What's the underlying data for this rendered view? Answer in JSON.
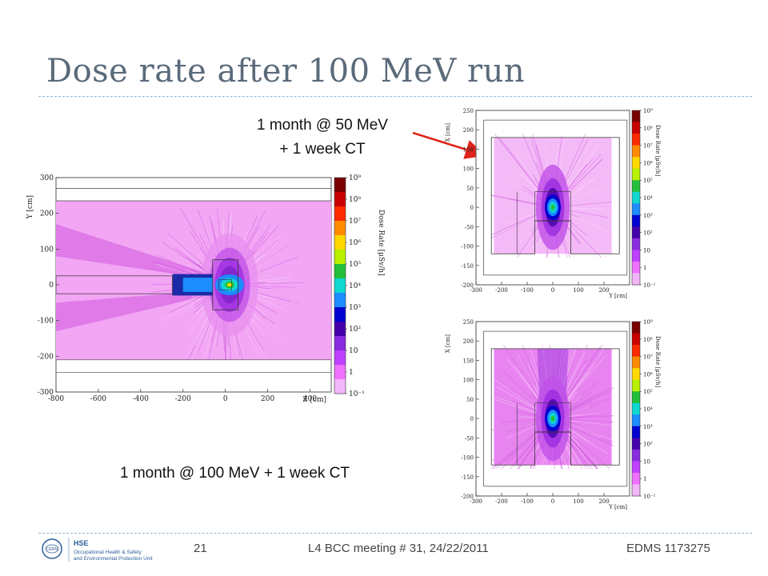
{
  "slide": {
    "title": "Dose rate after 100 MeV run",
    "caption_top_line1": "1 month @ 50 MeV",
    "caption_top_line2": "+ 1 week CT",
    "caption_bottom": "1 month @ 100 MeV + 1 week CT",
    "footer_page": "21",
    "footer_meeting": "L4 BCC meeting # 31, 24/22/2011",
    "footer_edms": "EDMS 1173275",
    "logo_cern": "CERN",
    "logo_hse": "HSE",
    "logo_line1": "Occupational Health & Safety",
    "logo_line2": "and Environmental Protection Unit"
  },
  "colors": {
    "title": "#5a6a7a",
    "arrow": "#e0241b",
    "rule": "#8fb6cf"
  },
  "chart_data": [
    {
      "type": "heatmap",
      "ylabel": "Y [cm]",
      "xlabel": "Z [cm]",
      "x_ticks": [
        "-800",
        "-600",
        "-400",
        "-200",
        "0",
        "200",
        "400"
      ],
      "y_ticks": [
        "300",
        "200",
        "100",
        "0",
        "-100",
        "-200",
        "-300"
      ],
      "xlim": [
        -800,
        500
      ],
      "ylim": [
        -300,
        300
      ],
      "colorbar_label": "Dose Rate [μSv/h]",
      "colorbar_ticks": [
        "10⁹",
        "10⁸",
        "10⁷",
        "10⁶",
        "10⁵",
        "10⁴",
        "10³",
        "10²",
        "10",
        "1",
        "10⁻¹"
      ]
    },
    {
      "type": "heatmap",
      "ylabel": "X [cm]",
      "xlabel": "Y [cm]",
      "x_ticks": [
        "-300",
        "-200",
        "-100",
        "0",
        "100",
        "200"
      ],
      "y_ticks": [
        "250",
        "200",
        "150",
        "100",
        "50",
        "0",
        "-50",
        "-100",
        "-150",
        "-200"
      ],
      "xlim": [
        -300,
        300
      ],
      "ylim": [
        -200,
        250
      ],
      "colorbar_label": "Dose Rate [μSv/h]",
      "colorbar_ticks": [
        "10⁹",
        "10⁸",
        "10⁷",
        "10⁶",
        "10⁵",
        "10⁴",
        "10³",
        "10²",
        "10",
        "1",
        "10⁻¹"
      ]
    },
    {
      "type": "heatmap",
      "ylabel": "X [cm]",
      "xlabel": "Y [cm]",
      "x_ticks": [
        "-300",
        "-200",
        "-100",
        "0",
        "100",
        "200"
      ],
      "y_ticks": [
        "250",
        "200",
        "150",
        "100",
        "50",
        "0",
        "-50",
        "-100",
        "-150",
        "-200"
      ],
      "xlim": [
        -300,
        300
      ],
      "ylim": [
        -200,
        250
      ],
      "colorbar_label": "Dose Rate [μSv/h]",
      "colorbar_ticks": [
        "10⁹",
        "10⁸",
        "10⁷",
        "10⁶",
        "10⁵",
        "10⁴",
        "10³",
        "10²",
        "10",
        "1",
        "10⁻¹"
      ]
    }
  ]
}
